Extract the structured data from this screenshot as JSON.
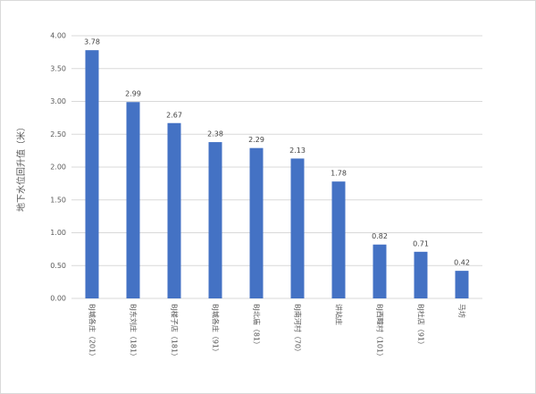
{
  "chart_data": {
    "type": "bar",
    "y_label": "地下水位回升值（米）",
    "categories": [
      "BJ城各庄（201）",
      "BJ东刘庄（181）",
      "BJ楼子店（181）",
      "BJ城各庄（91）",
      "BJ北庙（81）",
      "BJ南河村（70）",
      "讲站庄",
      "BJ西疃村（101）",
      "BJ杜店（91）",
      "马坊"
    ],
    "values": [
      3.78,
      2.99,
      2.67,
      2.38,
      2.29,
      2.13,
      1.78,
      0.82,
      0.71,
      0.42
    ],
    "color": "#4472c4",
    "ylim": [
      0,
      4
    ],
    "yticks": [
      {
        "value": 0,
        "label": "0.00"
      },
      {
        "value": 0.5,
        "label": "0.50"
      },
      {
        "value": 1,
        "label": "1.00"
      },
      {
        "value": 1.5,
        "label": "1.50"
      },
      {
        "value": 2,
        "label": "2.00"
      },
      {
        "value": 2.5,
        "label": "2.50"
      },
      {
        "value": 3,
        "label": "3.00"
      },
      {
        "value": 3.5,
        "label": "3.50"
      },
      {
        "value": 4,
        "label": "4.00"
      }
    ],
    "grid": true
  }
}
